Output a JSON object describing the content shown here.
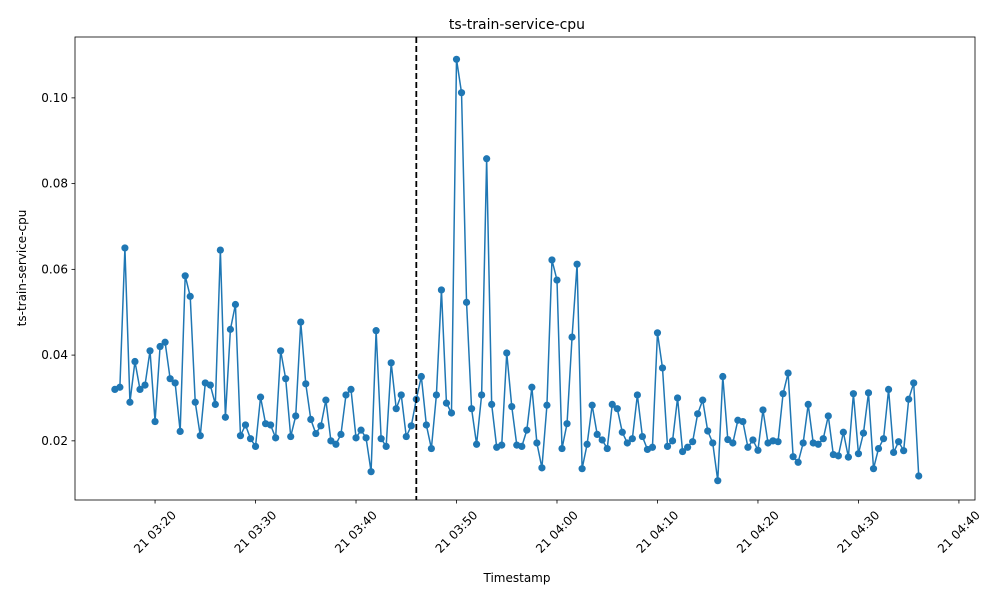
{
  "chart_data": {
    "type": "line",
    "title": "ts-train-service-cpu",
    "x_label": "Timestamp",
    "y_label": "ts-train-service-cpu",
    "color": "#1f77b4",
    "grid": false,
    "x": [
      "03:16:00",
      "03:16:30",
      "03:17:00",
      "03:17:30",
      "03:18:00",
      "03:18:30",
      "03:19:00",
      "03:19:30",
      "03:20:00",
      "03:20:30",
      "03:21:00",
      "03:21:30",
      "03:22:00",
      "03:22:30",
      "03:23:00",
      "03:23:30",
      "03:24:00",
      "03:24:30",
      "03:25:00",
      "03:25:30",
      "03:26:00",
      "03:26:30",
      "03:27:00",
      "03:27:30",
      "03:28:00",
      "03:28:30",
      "03:29:00",
      "03:29:30",
      "03:30:00",
      "03:30:30",
      "03:31:00",
      "03:31:30",
      "03:32:00",
      "03:32:30",
      "03:33:00",
      "03:33:30",
      "03:34:00",
      "03:34:30",
      "03:35:00",
      "03:35:30",
      "03:36:00",
      "03:36:30",
      "03:37:00",
      "03:37:30",
      "03:38:00",
      "03:38:30",
      "03:39:00",
      "03:39:30",
      "03:40:00",
      "03:40:30",
      "03:41:00",
      "03:41:30",
      "03:42:00",
      "03:42:30",
      "03:43:00",
      "03:43:30",
      "03:44:00",
      "03:44:30",
      "03:45:00",
      "03:45:30",
      "03:46:00",
      "03:46:30",
      "03:47:00",
      "03:47:30",
      "03:48:00",
      "03:48:30",
      "03:49:00",
      "03:49:30",
      "03:50:00",
      "03:50:30",
      "03:51:00",
      "03:51:30",
      "03:52:00",
      "03:52:30",
      "03:53:00",
      "03:53:30",
      "03:54:00",
      "03:54:30",
      "03:55:00",
      "03:55:30",
      "03:56:00",
      "03:56:30",
      "03:57:00",
      "03:57:30",
      "03:58:00",
      "03:58:30",
      "03:59:00",
      "03:59:30",
      "04:00:00",
      "04:00:30",
      "04:01:00",
      "04:01:30",
      "04:02:00",
      "04:02:30",
      "04:03:00",
      "04:03:30",
      "04:04:00",
      "04:04:30",
      "04:05:00",
      "04:05:30",
      "04:06:00",
      "04:06:30",
      "04:07:00",
      "04:07:30",
      "04:08:00",
      "04:08:30",
      "04:09:00",
      "04:09:30",
      "04:10:00",
      "04:10:30",
      "04:11:00",
      "04:11:30",
      "04:12:00",
      "04:12:30",
      "04:13:00",
      "04:13:30",
      "04:14:00",
      "04:14:30",
      "04:15:00",
      "04:15:30",
      "04:16:00",
      "04:16:30",
      "04:17:00",
      "04:17:30",
      "04:18:00",
      "04:18:30",
      "04:19:00",
      "04:19:30",
      "04:20:00",
      "04:20:30",
      "04:21:00",
      "04:21:30",
      "04:22:00",
      "04:22:30",
      "04:23:00",
      "04:23:30",
      "04:24:00",
      "04:24:30",
      "04:25:00",
      "04:25:30",
      "04:26:00",
      "04:26:30",
      "04:27:00",
      "04:27:30",
      "04:28:00",
      "04:28:30",
      "04:29:00",
      "04:29:30",
      "04:30:00",
      "04:30:30",
      "04:31:00",
      "04:31:30",
      "04:32:00",
      "04:32:30",
      "04:33:00",
      "04:33:30",
      "04:34:00",
      "04:34:30",
      "04:35:00",
      "04:35:30",
      "04:36:00"
    ],
    "values": [
      0.032,
      0.0325,
      0.065,
      0.029,
      0.0385,
      0.032,
      0.033,
      0.041,
      0.0245,
      0.042,
      0.043,
      0.0345,
      0.0335,
      0.0222,
      0.0585,
      0.0537,
      0.029,
      0.0212,
      0.0335,
      0.033,
      0.0285,
      0.0645,
      0.0255,
      0.046,
      0.0518,
      0.0212,
      0.0237,
      0.0205,
      0.0187,
      0.0302,
      0.024,
      0.0237,
      0.0207,
      0.041,
      0.0345,
      0.021,
      0.0258,
      0.0477,
      0.0333,
      0.025,
      0.0217,
      0.0235,
      0.0295,
      0.02,
      0.0192,
      0.0215,
      0.0307,
      0.032,
      0.0207,
      0.0225,
      0.0207,
      0.0128,
      0.0457,
      0.0205,
      0.0187,
      0.0382,
      0.0275,
      0.0307,
      0.021,
      0.0235,
      0.0297,
      0.035,
      0.0237,
      0.0182,
      0.0307,
      0.0552,
      0.0288,
      0.0265,
      0.109,
      0.1012,
      0.0523,
      0.0275,
      0.0192,
      0.0307,
      0.0858,
      0.0285,
      0.0185,
      0.019,
      0.0405,
      0.028,
      0.019,
      0.0187,
      0.0225,
      0.0325,
      0.0195,
      0.0137,
      0.0283,
      0.0622,
      0.0575,
      0.0182,
      0.024,
      0.0442,
      0.0612,
      0.0135,
      0.0192,
      0.0283,
      0.0215,
      0.0202,
      0.0182,
      0.0285,
      0.0275,
      0.022,
      0.0195,
      0.0205,
      0.0307,
      0.021,
      0.018,
      0.0185,
      0.0452,
      0.037,
      0.0187,
      0.02,
      0.03,
      0.0175,
      0.0185,
      0.0198,
      0.0263,
      0.0295,
      0.0223,
      0.0195,
      0.0107,
      0.035,
      0.0203,
      0.0195,
      0.0248,
      0.0245,
      0.0185,
      0.0202,
      0.0178,
      0.0272,
      0.0195,
      0.02,
      0.0198,
      0.031,
      0.0358,
      0.0163,
      0.015,
      0.0195,
      0.0285,
      0.0195,
      0.0192,
      0.0205,
      0.0258,
      0.0168,
      0.0165,
      0.022,
      0.0162,
      0.031,
      0.017,
      0.0218,
      0.0312,
      0.0135,
      0.0182,
      0.0205,
      0.032,
      0.0173,
      0.0198,
      0.0177,
      0.0297,
      0.0335,
      0.0118
    ],
    "xlim": [
      "03:12:02",
      "04:41:36"
    ],
    "xticks": [
      {
        "value": "03:20:00",
        "label": "21 03:20"
      },
      {
        "value": "03:30:00",
        "label": "21 03:30"
      },
      {
        "value": "03:40:00",
        "label": "21 03:40"
      },
      {
        "value": "03:50:00",
        "label": "21 03:50"
      },
      {
        "value": "04:00:00",
        "label": "21 04:00"
      },
      {
        "value": "04:10:00",
        "label": "21 04:10"
      },
      {
        "value": "04:20:00",
        "label": "21 04:20"
      },
      {
        "value": "04:30:00",
        "label": "21 04:30"
      },
      {
        "value": "04:40:00",
        "label": "21 04:40"
      }
    ],
    "ylim": [
      0.0062,
      0.1142
    ],
    "yticks": [
      0.02,
      0.04,
      0.06,
      0.08,
      {
        "value": 0.1,
        "label": "0.10"
      }
    ],
    "vline": {
      "x": "03:46:00",
      "color": "#000000",
      "style": "dashed"
    }
  }
}
